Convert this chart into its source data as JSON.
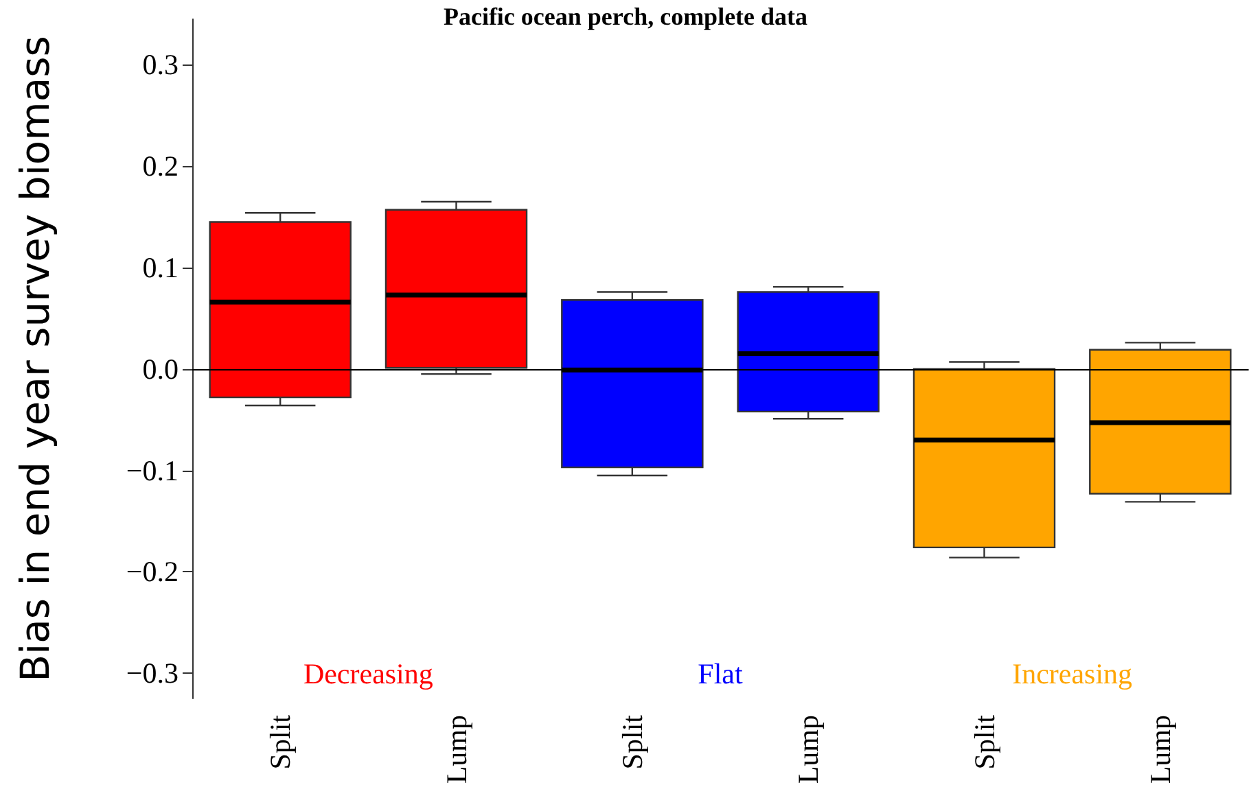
{
  "chart_data": {
    "type": "box",
    "title": "Pacific ocean perch, complete data",
    "ylabel": "Bias in end year survey biomass",
    "categories": [
      "Split",
      "Lump",
      "Split",
      "Lump",
      "Split",
      "Lump"
    ],
    "series": [
      {
        "name": "Decreasing",
        "color": "#ff0000",
        "boxes": [
          {
            "low": -0.036,
            "q1": -0.028,
            "median": 0.066,
            "q3": 0.145,
            "high": 0.154
          },
          {
            "low": -0.005,
            "q1": 0.001,
            "median": 0.073,
            "q3": 0.157,
            "high": 0.165
          },
          null,
          null,
          null,
          null
        ]
      },
      {
        "name": "Flat",
        "color": "#0000ff",
        "boxes": [
          null,
          null,
          {
            "low": -0.105,
            "q1": -0.097,
            "median": -0.001,
            "q3": 0.068,
            "high": 0.076
          },
          {
            "low": -0.049,
            "q1": -0.042,
            "median": 0.015,
            "q3": 0.076,
            "high": 0.081
          },
          null,
          null
        ]
      },
      {
        "name": "Increasing",
        "color": "#ffa500",
        "boxes": [
          null,
          null,
          null,
          null,
          {
            "low": -0.186,
            "q1": -0.176,
            "median": -0.07,
            "q3": 0.0,
            "high": 0.007
          },
          {
            "low": -0.131,
            "q1": -0.123,
            "median": -0.053,
            "q3": 0.019,
            "high": 0.026
          }
        ]
      }
    ],
    "ylim": [
      -0.325,
      0.345
    ],
    "yticks": [
      {
        "value": -0.3,
        "label": "−0.3"
      },
      {
        "value": -0.2,
        "label": "−0.2"
      },
      {
        "value": -0.1,
        "label": "−0.1"
      },
      {
        "value": 0,
        "label": "0.0"
      },
      {
        "value": 0.1,
        "label": "0.1"
      },
      {
        "value": 0.2,
        "label": "0.2"
      },
      {
        "value": 0.3,
        "label": "0.3"
      }
    ],
    "ref_lines": [
      {
        "axis": "y",
        "value": 0,
        "color": "#000000"
      }
    ],
    "grid": false,
    "legend": false
  }
}
